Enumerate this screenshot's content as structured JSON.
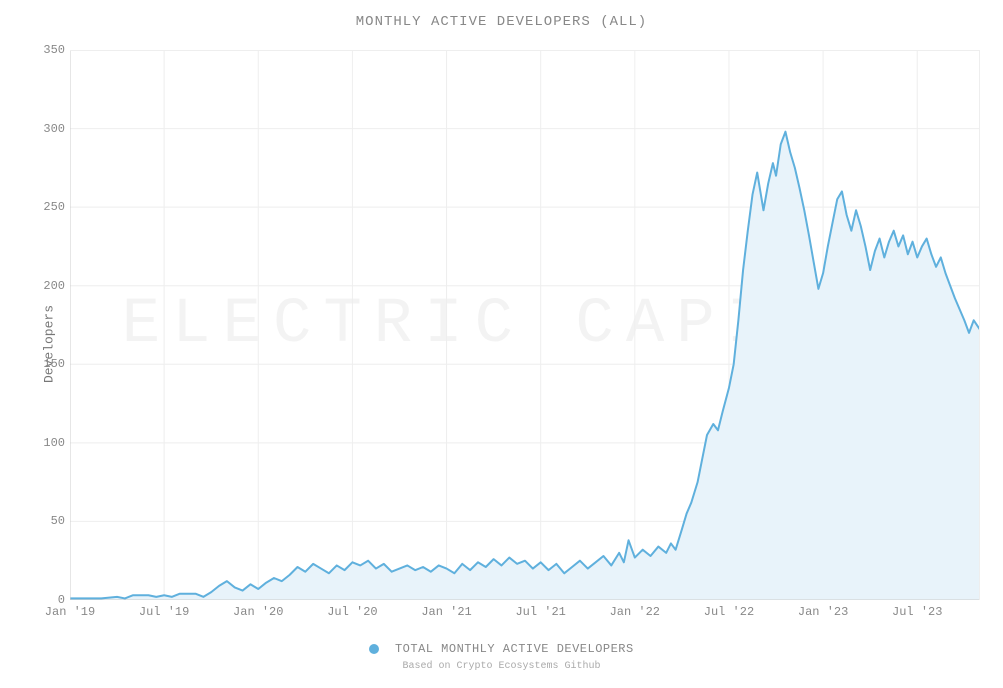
{
  "chart": {
    "type": "area",
    "title": "MONTHLY ACTIVE DEVELOPERS (ALL)",
    "ylabel": "Developers",
    "legend_label": "TOTAL MONTHLY ACTIVE DEVELOPERS",
    "footnote": "Based on Crypto Ecosystems Github",
    "watermark": "ELECTRIC CAPITAL",
    "line_color": "#5fb0dd",
    "fill_color": "#e8f3fa",
    "fill_opacity": 1.0,
    "line_width": 2,
    "background_color": "#ffffff",
    "grid_color": "#eeeeee",
    "axis_color": "#cccccc",
    "text_color": "#888888",
    "title_fontsize": 14,
    "label_fontsize": 13,
    "tick_fontsize": 12,
    "font_family": "Courier New, monospace",
    "ylim": [
      0,
      350
    ],
    "ytick_step": 50,
    "yticks": [
      0,
      50,
      100,
      150,
      200,
      250,
      300,
      350
    ],
    "xlim": [
      0,
      58
    ],
    "xticks": [
      {
        "pos": 0,
        "label": "Jan '19"
      },
      {
        "pos": 6,
        "label": "Jul '19"
      },
      {
        "pos": 12,
        "label": "Jan '20"
      },
      {
        "pos": 18,
        "label": "Jul '20"
      },
      {
        "pos": 24,
        "label": "Jan '21"
      },
      {
        "pos": 30,
        "label": "Jul '21"
      },
      {
        "pos": 36,
        "label": "Jan '22"
      },
      {
        "pos": 42,
        "label": "Jul '22"
      },
      {
        "pos": 48,
        "label": "Jan '23"
      },
      {
        "pos": 54,
        "label": "Jul '23"
      }
    ],
    "series": [
      {
        "x": 0.0,
        "y": 1
      },
      {
        "x": 1.0,
        "y": 1
      },
      {
        "x": 2.0,
        "y": 1
      },
      {
        "x": 3.0,
        "y": 2
      },
      {
        "x": 3.5,
        "y": 1
      },
      {
        "x": 4.0,
        "y": 3
      },
      {
        "x": 5.0,
        "y": 3
      },
      {
        "x": 5.5,
        "y": 2
      },
      {
        "x": 6.0,
        "y": 3
      },
      {
        "x": 6.5,
        "y": 2
      },
      {
        "x": 7.0,
        "y": 4
      },
      {
        "x": 8.0,
        "y": 4
      },
      {
        "x": 8.5,
        "y": 2
      },
      {
        "x": 9.0,
        "y": 5
      },
      {
        "x": 9.5,
        "y": 9
      },
      {
        "x": 10.0,
        "y": 12
      },
      {
        "x": 10.5,
        "y": 8
      },
      {
        "x": 11.0,
        "y": 6
      },
      {
        "x": 11.5,
        "y": 10
      },
      {
        "x": 12.0,
        "y": 7
      },
      {
        "x": 12.5,
        "y": 11
      },
      {
        "x": 13.0,
        "y": 14
      },
      {
        "x": 13.5,
        "y": 12
      },
      {
        "x": 14.0,
        "y": 16
      },
      {
        "x": 14.5,
        "y": 21
      },
      {
        "x": 15.0,
        "y": 18
      },
      {
        "x": 15.5,
        "y": 23
      },
      {
        "x": 16.0,
        "y": 20
      },
      {
        "x": 16.5,
        "y": 17
      },
      {
        "x": 17.0,
        "y": 22
      },
      {
        "x": 17.5,
        "y": 19
      },
      {
        "x": 18.0,
        "y": 24
      },
      {
        "x": 18.5,
        "y": 22
      },
      {
        "x": 19.0,
        "y": 25
      },
      {
        "x": 19.5,
        "y": 20
      },
      {
        "x": 20.0,
        "y": 23
      },
      {
        "x": 20.5,
        "y": 18
      },
      {
        "x": 21.0,
        "y": 20
      },
      {
        "x": 21.5,
        "y": 22
      },
      {
        "x": 22.0,
        "y": 19
      },
      {
        "x": 22.5,
        "y": 21
      },
      {
        "x": 23.0,
        "y": 18
      },
      {
        "x": 23.5,
        "y": 22
      },
      {
        "x": 24.0,
        "y": 20
      },
      {
        "x": 24.5,
        "y": 17
      },
      {
        "x": 25.0,
        "y": 23
      },
      {
        "x": 25.5,
        "y": 19
      },
      {
        "x": 26.0,
        "y": 24
      },
      {
        "x": 26.5,
        "y": 21
      },
      {
        "x": 27.0,
        "y": 26
      },
      {
        "x": 27.5,
        "y": 22
      },
      {
        "x": 28.0,
        "y": 27
      },
      {
        "x": 28.5,
        "y": 23
      },
      {
        "x": 29.0,
        "y": 25
      },
      {
        "x": 29.5,
        "y": 20
      },
      {
        "x": 30.0,
        "y": 24
      },
      {
        "x": 30.5,
        "y": 19
      },
      {
        "x": 31.0,
        "y": 23
      },
      {
        "x": 31.5,
        "y": 17
      },
      {
        "x": 32.0,
        "y": 21
      },
      {
        "x": 32.5,
        "y": 25
      },
      {
        "x": 33.0,
        "y": 20
      },
      {
        "x": 33.5,
        "y": 24
      },
      {
        "x": 34.0,
        "y": 28
      },
      {
        "x": 34.5,
        "y": 22
      },
      {
        "x": 35.0,
        "y": 30
      },
      {
        "x": 35.3,
        "y": 24
      },
      {
        "x": 35.6,
        "y": 38
      },
      {
        "x": 36.0,
        "y": 27
      },
      {
        "x": 36.5,
        "y": 32
      },
      {
        "x": 37.0,
        "y": 28
      },
      {
        "x": 37.5,
        "y": 34
      },
      {
        "x": 38.0,
        "y": 30
      },
      {
        "x": 38.3,
        "y": 36
      },
      {
        "x": 38.6,
        "y": 32
      },
      {
        "x": 39.0,
        "y": 45
      },
      {
        "x": 39.3,
        "y": 55
      },
      {
        "x": 39.6,
        "y": 62
      },
      {
        "x": 40.0,
        "y": 75
      },
      {
        "x": 40.3,
        "y": 90
      },
      {
        "x": 40.6,
        "y": 105
      },
      {
        "x": 41.0,
        "y": 112
      },
      {
        "x": 41.3,
        "y": 108
      },
      {
        "x": 41.6,
        "y": 120
      },
      {
        "x": 42.0,
        "y": 135
      },
      {
        "x": 42.3,
        "y": 150
      },
      {
        "x": 42.6,
        "y": 178
      },
      {
        "x": 42.9,
        "y": 210
      },
      {
        "x": 43.2,
        "y": 235
      },
      {
        "x": 43.5,
        "y": 258
      },
      {
        "x": 43.8,
        "y": 272
      },
      {
        "x": 44.0,
        "y": 260
      },
      {
        "x": 44.2,
        "y": 248
      },
      {
        "x": 44.5,
        "y": 265
      },
      {
        "x": 44.8,
        "y": 278
      },
      {
        "x": 45.0,
        "y": 270
      },
      {
        "x": 45.3,
        "y": 290
      },
      {
        "x": 45.6,
        "y": 298
      },
      {
        "x": 45.9,
        "y": 285
      },
      {
        "x": 46.2,
        "y": 275
      },
      {
        "x": 46.5,
        "y": 262
      },
      {
        "x": 46.8,
        "y": 248
      },
      {
        "x": 47.1,
        "y": 232
      },
      {
        "x": 47.4,
        "y": 215
      },
      {
        "x": 47.7,
        "y": 198
      },
      {
        "x": 48.0,
        "y": 208
      },
      {
        "x": 48.3,
        "y": 225
      },
      {
        "x": 48.6,
        "y": 240
      },
      {
        "x": 48.9,
        "y": 255
      },
      {
        "x": 49.2,
        "y": 260
      },
      {
        "x": 49.5,
        "y": 245
      },
      {
        "x": 49.8,
        "y": 235
      },
      {
        "x": 50.1,
        "y": 248
      },
      {
        "x": 50.4,
        "y": 238
      },
      {
        "x": 50.7,
        "y": 225
      },
      {
        "x": 51.0,
        "y": 210
      },
      {
        "x": 51.3,
        "y": 222
      },
      {
        "x": 51.6,
        "y": 230
      },
      {
        "x": 51.9,
        "y": 218
      },
      {
        "x": 52.2,
        "y": 228
      },
      {
        "x": 52.5,
        "y": 235
      },
      {
        "x": 52.8,
        "y": 225
      },
      {
        "x": 53.1,
        "y": 232
      },
      {
        "x": 53.4,
        "y": 220
      },
      {
        "x": 53.7,
        "y": 228
      },
      {
        "x": 54.0,
        "y": 218
      },
      {
        "x": 54.3,
        "y": 225
      },
      {
        "x": 54.6,
        "y": 230
      },
      {
        "x": 54.9,
        "y": 220
      },
      {
        "x": 55.2,
        "y": 212
      },
      {
        "x": 55.5,
        "y": 218
      },
      {
        "x": 55.8,
        "y": 208
      },
      {
        "x": 56.1,
        "y": 200
      },
      {
        "x": 56.4,
        "y": 192
      },
      {
        "x": 56.7,
        "y": 185
      },
      {
        "x": 57.0,
        "y": 178
      },
      {
        "x": 57.3,
        "y": 170
      },
      {
        "x": 57.6,
        "y": 178
      },
      {
        "x": 58.0,
        "y": 172
      }
    ]
  }
}
